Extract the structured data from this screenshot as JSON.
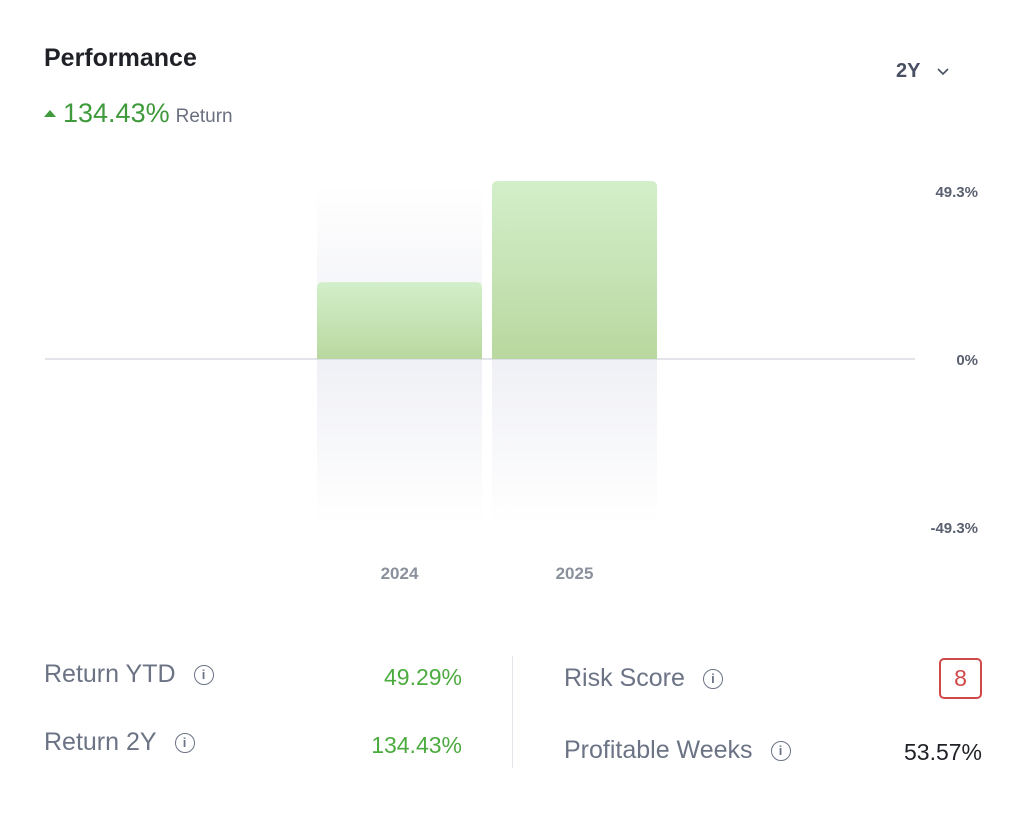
{
  "header": {
    "title": "Performance",
    "return_value": "134.43%",
    "return_label": "Return",
    "period": "2Y"
  },
  "chart_data": {
    "type": "bar",
    "categories": [
      "2024",
      "2025"
    ],
    "values": [
      21.3,
      49.3
    ],
    "ylim": [
      -49.3,
      49.3
    ],
    "ytick_labels": [
      "49.3%",
      "0%",
      "-49.3%"
    ],
    "yticks": [
      49.3,
      0,
      -49.3
    ],
    "grid": false,
    "colors": {
      "bar_top": "#d2efca",
      "bar_bottom": "#b9d89f",
      "axis": "#d8dbe3"
    }
  },
  "stats": {
    "return_ytd": {
      "label": "Return YTD",
      "value": "49.29%"
    },
    "return_2y": {
      "label": "Return 2Y",
      "value": "134.43%"
    },
    "risk_score": {
      "label": "Risk Score",
      "value": "8"
    },
    "profitable_weeks": {
      "label": "Profitable Weeks",
      "value": "53.57%"
    }
  },
  "icons": {
    "info": "i"
  }
}
